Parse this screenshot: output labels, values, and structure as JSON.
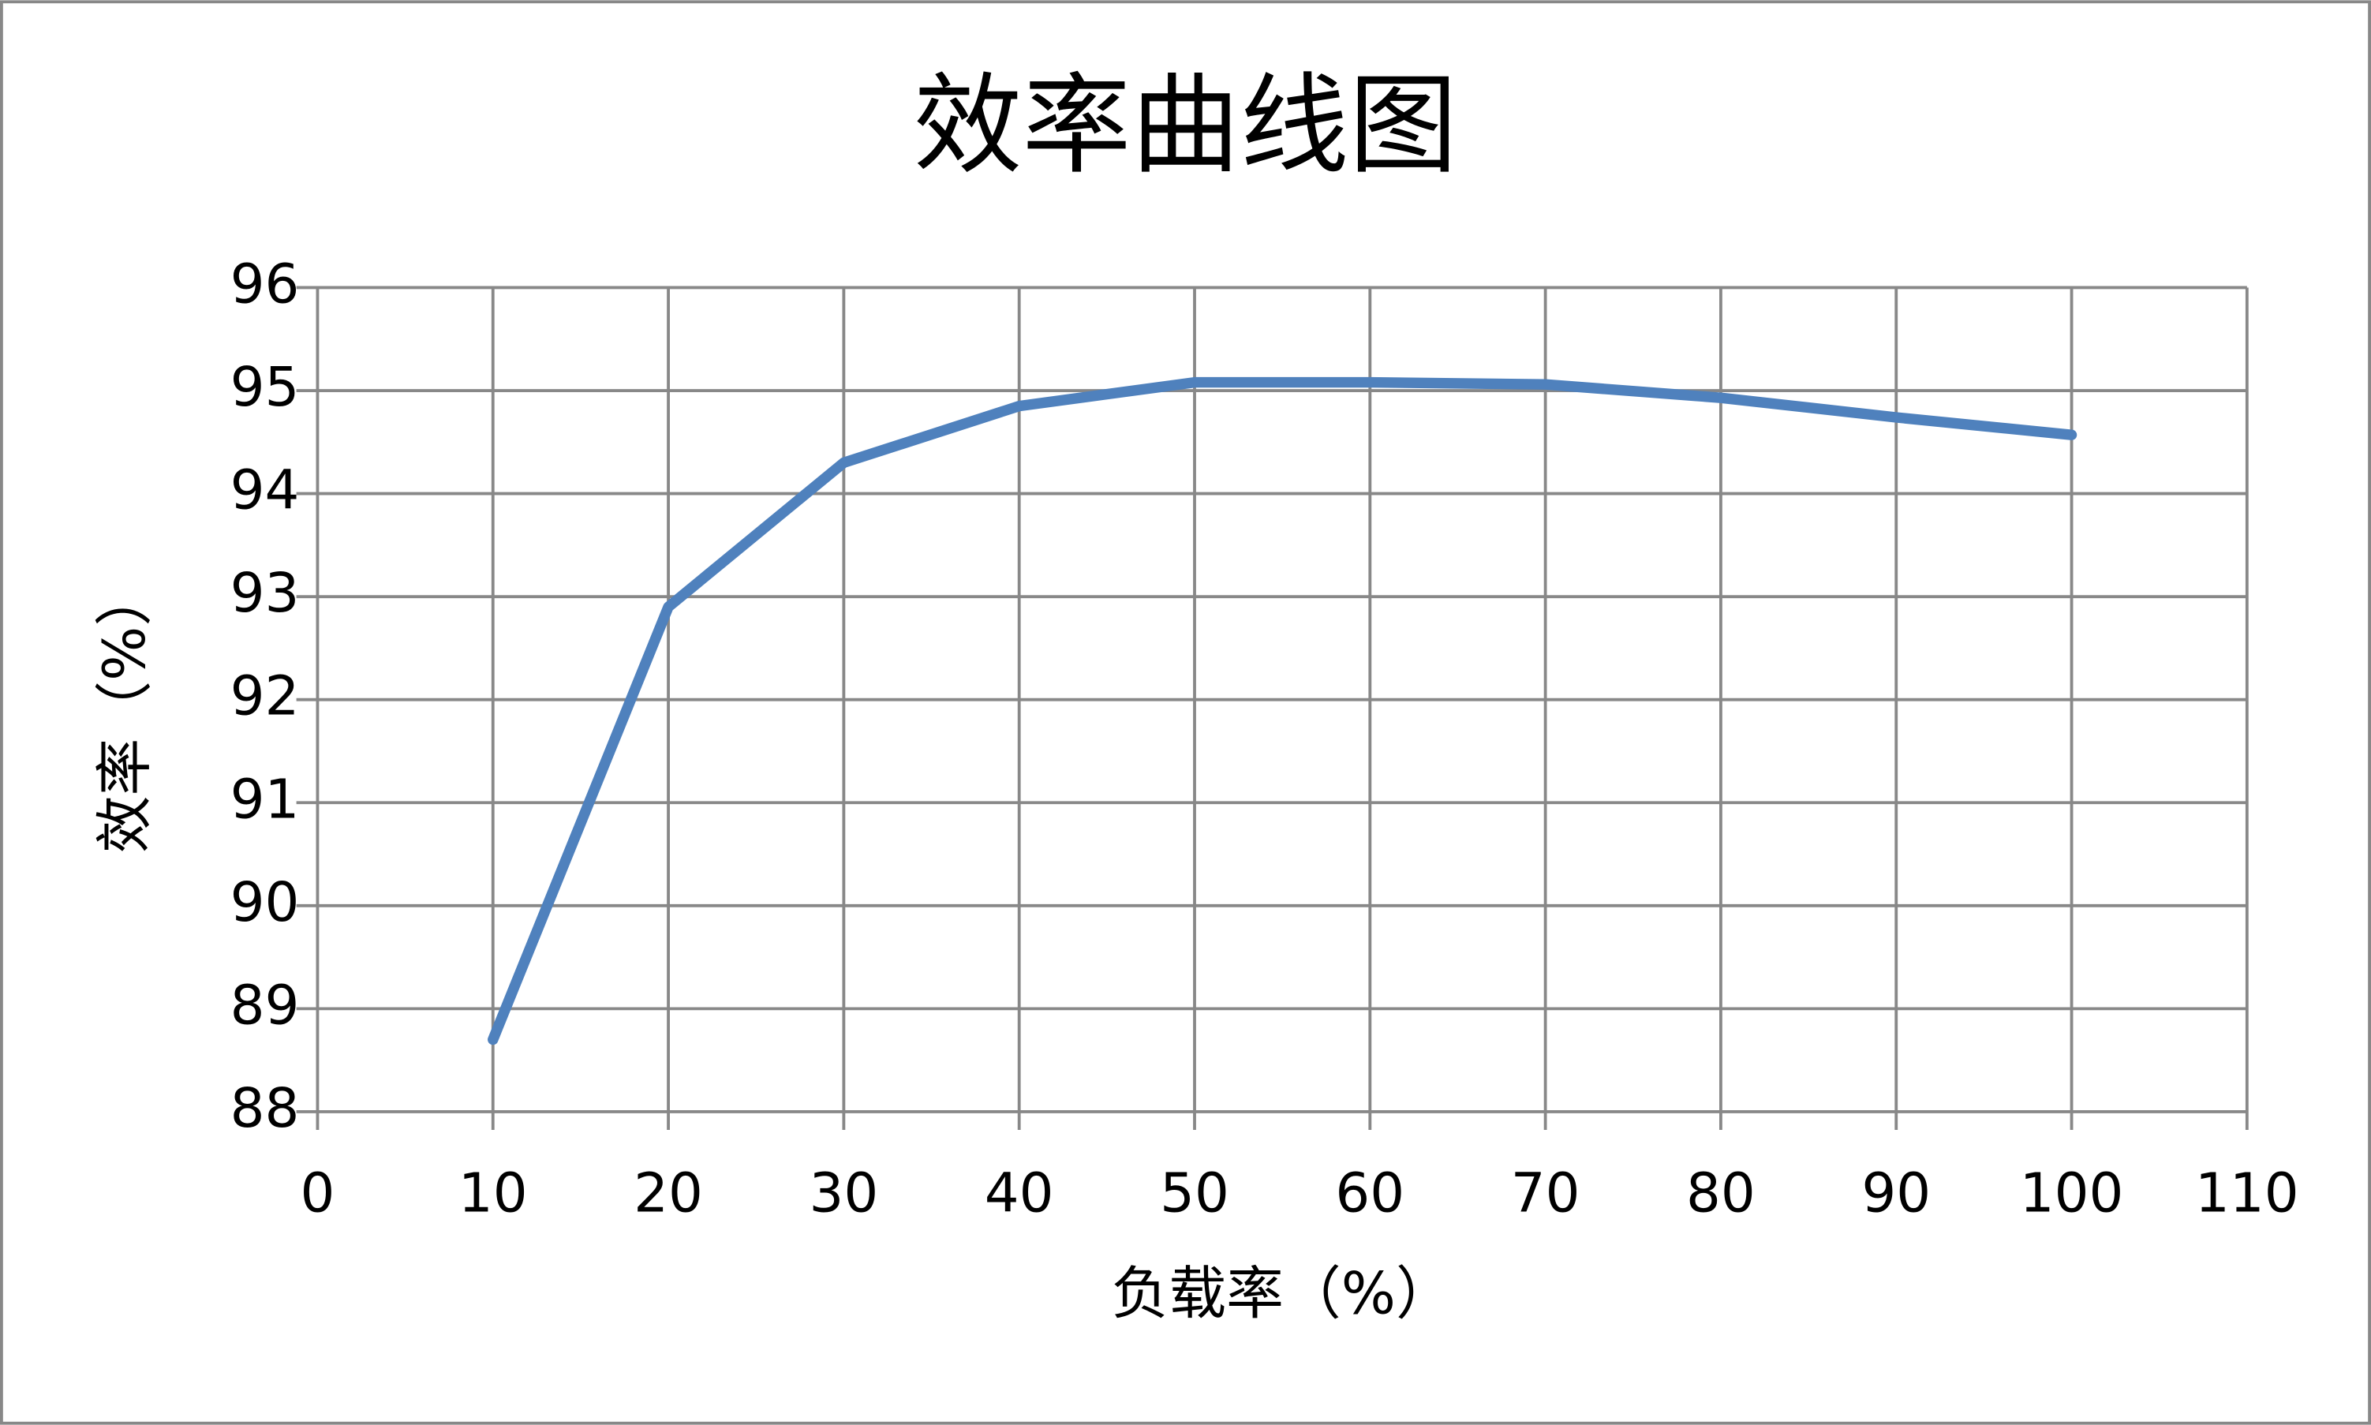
{
  "chart_data": {
    "type": "line",
    "title": "效率曲线图",
    "x_label": "负载率（%）",
    "y_label": "效率（%）",
    "x": [
      10,
      20,
      30,
      40,
      50,
      60,
      70,
      80,
      90,
      100
    ],
    "values": [
      88.7,
      92.9,
      94.3,
      94.85,
      95.08,
      95.08,
      95.06,
      94.93,
      94.74,
      94.57
    ],
    "color": "#4f81bd",
    "xlim": [
      0,
      110
    ],
    "xticks": [
      0,
      10,
      20,
      30,
      40,
      50,
      60,
      70,
      80,
      90,
      100,
      110
    ],
    "ylim": [
      88,
      96
    ],
    "yticks": [
      88,
      89,
      90,
      91,
      92,
      93,
      94,
      95,
      96
    ],
    "grid": true
  }
}
